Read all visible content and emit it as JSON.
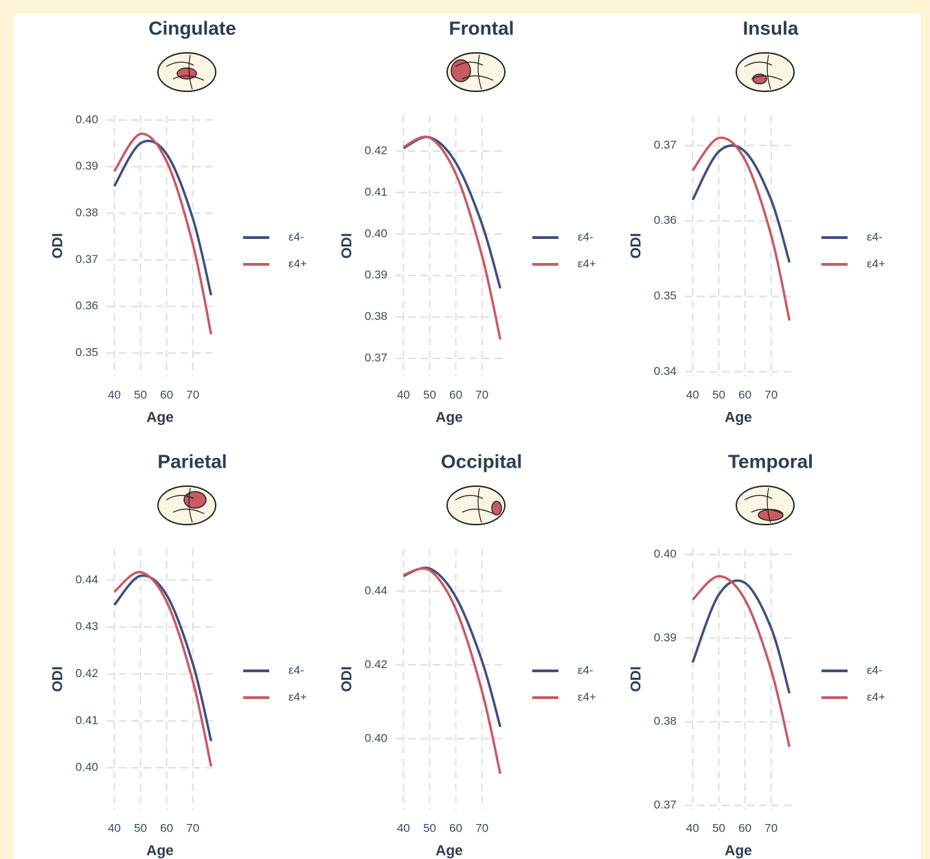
{
  "chart_data": [
    {
      "type": "line",
      "title": "Cingulate",
      "xlabel": "Age",
      "ylabel": "ODI",
      "x": [
        40,
        50,
        60,
        70,
        77
      ],
      "xlim": [
        37,
        79
      ],
      "xticks": [
        40,
        50,
        60,
        70
      ],
      "ylim": [
        0.345,
        0.401
      ],
      "yticks": [
        0.35,
        0.36,
        0.37,
        0.38,
        0.39,
        {
          "value": 0.4,
          "label": "0.40"
        }
      ],
      "grid": true,
      "series": [
        {
          "name": "ε4-",
          "color": "#3e4f82",
          "values": [
            0.3858,
            0.395,
            0.3927,
            0.3789,
            0.3624
          ]
        },
        {
          "name": "ε4+",
          "color": "#c95a63",
          "values": [
            0.389,
            0.397,
            0.3911,
            0.3734,
            0.354
          ]
        }
      ]
    },
    {
      "type": "line",
      "title": "Frontal",
      "xlabel": "Age",
      "ylabel": "ODI",
      "x": [
        40,
        50,
        60,
        70,
        77
      ],
      "xlim": [
        37,
        79
      ],
      "xticks": [
        40,
        50,
        60,
        70
      ],
      "ylim": [
        0.3657,
        0.4286
      ],
      "yticks": [
        0.37,
        0.38,
        0.39,
        {
          "value": 0.4,
          "label": "0.40"
        },
        0.41,
        0.42
      ],
      "grid": true,
      "series": [
        {
          "name": "ε4-",
          "color": "#3e4f82",
          "values": [
            0.4207,
            0.4233,
            0.4172,
            0.4024,
            0.3869
          ]
        },
        {
          "name": "ε4+",
          "color": "#c95a63",
          "values": [
            0.421,
            0.4232,
            0.4145,
            0.3948,
            0.3746
          ]
        }
      ]
    },
    {
      "type": "line",
      "title": "Insula",
      "xlabel": "Age",
      "ylabel": "ODI",
      "x": [
        40,
        50,
        60,
        70,
        77
      ],
      "xlim": [
        37,
        79
      ],
      "xticks": [
        40,
        50,
        60,
        70
      ],
      "ylim": [
        0.3394,
        0.374
      ],
      "yticks": [
        0.34,
        0.35,
        0.36,
        0.37
      ],
      "grid": true,
      "series": [
        {
          "name": "ε4-",
          "color": "#3e4f82",
          "values": [
            0.3628,
            0.3692,
            0.3692,
            0.3628,
            0.3545
          ]
        },
        {
          "name": "ε4+",
          "color": "#c95a63",
          "values": [
            0.3667,
            0.371,
            0.3681,
            0.3581,
            0.3468
          ]
        }
      ]
    },
    {
      "type": "line",
      "title": "Parietal",
      "xlabel": "Age",
      "ylabel": "ODI",
      "x": [
        40,
        50,
        60,
        70,
        77
      ],
      "xlim": [
        37,
        79
      ],
      "xticks": [
        40,
        50,
        60,
        70
      ],
      "ylim": [
        0.3911,
        0.4467
      ],
      "yticks": [
        {
          "value": 0.4,
          "label": "0.40"
        },
        0.41,
        0.42,
        0.43,
        0.44
      ],
      "grid": true,
      "series": [
        {
          "name": "ε4-",
          "color": "#3e4f82",
          "values": [
            0.4347,
            0.4409,
            0.4368,
            0.4222,
            0.4057
          ]
        },
        {
          "name": "ε4+",
          "color": "#c95a63",
          "values": [
            0.4375,
            0.4417,
            0.4354,
            0.4185,
            0.4003
          ]
        }
      ]
    },
    {
      "type": "line",
      "title": "Occipital",
      "xlabel": "Age",
      "ylabel": "ODI",
      "x": [
        40,
        50,
        60,
        70,
        77
      ],
      "xlim": [
        37,
        79
      ],
      "xticks": [
        40,
        50,
        60,
        70
      ],
      "ylim": [
        0.3808,
        0.4515
      ],
      "yticks": [
        {
          "value": 0.4,
          "label": "0.40"
        },
        0.42,
        0.44
      ],
      "grid": true,
      "series": [
        {
          "name": "ε4-",
          "color": "#3e4f82",
          "values": [
            0.4441,
            0.4461,
            0.4384,
            0.4211,
            0.4032
          ]
        },
        {
          "name": "ε4+",
          "color": "#c95a63",
          "values": [
            0.4444,
            0.4456,
            0.4351,
            0.4129,
            0.3905
          ]
        }
      ]
    },
    {
      "type": "line",
      "title": "Temporal",
      "xlabel": "Age",
      "ylabel": "ODI",
      "x": [
        40,
        50,
        60,
        70,
        77
      ],
      "xlim": [
        37,
        79
      ],
      "xticks": [
        40,
        50,
        60,
        70
      ],
      "ylim": [
        0.3695,
        0.4007
      ],
      "yticks": [
        0.37,
        0.38,
        0.39,
        {
          "value": 0.4,
          "label": "0.40"
        }
      ],
      "grid": true,
      "series": [
        {
          "name": "ε4-",
          "color": "#3e4f82",
          "values": [
            0.3871,
            0.3952,
            0.3966,
            0.3912,
            0.3834
          ]
        },
        {
          "name": "ε4+",
          "color": "#c95a63",
          "values": [
            0.3946,
            0.3974,
            0.3946,
            0.3862,
            0.377
          ]
        }
      ]
    }
  ]
}
